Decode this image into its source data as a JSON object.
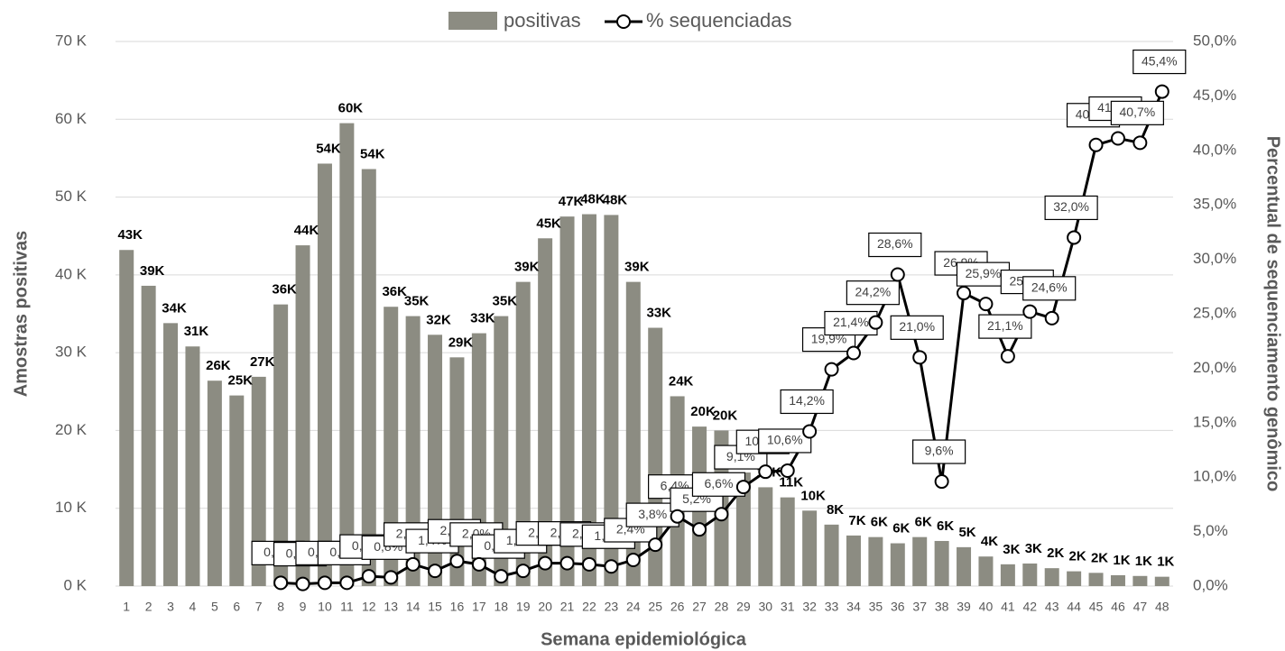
{
  "chart_data": {
    "type": "bar_line",
    "x_label": "Semana epidemiológica",
    "y_label": "Amostras positivas",
    "y2_label": "Percentual de sequenciamento genômico",
    "categories": [
      "1",
      "2",
      "3",
      "4",
      "5",
      "6",
      "7",
      "8",
      "9",
      "10",
      "11",
      "12",
      "13",
      "14",
      "15",
      "16",
      "17",
      "18",
      "19",
      "20",
      "21",
      "22",
      "23",
      "24",
      "25",
      "26",
      "27",
      "28",
      "29",
      "30",
      "31",
      "32",
      "33",
      "34",
      "35",
      "36",
      "37",
      "38",
      "39",
      "40",
      "41",
      "42",
      "43",
      "44",
      "45",
      "46",
      "47",
      "48"
    ],
    "series": [
      {
        "name": "positivas",
        "color": "#8c8c82",
        "values": [
          43.2,
          38.6,
          33.8,
          30.8,
          26.4,
          24.5,
          26.9,
          36.2,
          43.8,
          54.3,
          59.5,
          53.6,
          35.9,
          34.7,
          32.3,
          29.4,
          32.5,
          34.7,
          39.1,
          44.7,
          47.5,
          47.8,
          47.7,
          39.1,
          33.2,
          24.4,
          20.5,
          20.0,
          14.6,
          12.7,
          11.4,
          9.7,
          7.9,
          6.5,
          6.3,
          5.5,
          6.3,
          5.8,
          5.0,
          3.8,
          2.8,
          2.9,
          2.3,
          1.9,
          1.7,
          1.4,
          1.3,
          1.2
        ],
        "value_labels": [
          "43K",
          "39K",
          "34K",
          "31K",
          "26K",
          "25K",
          "27K",
          "36K",
          "44K",
          "54K",
          "60K",
          "54K",
          "36K",
          "35K",
          "32K",
          "29K",
          "33K",
          "35K",
          "39K",
          "45K",
          "47K",
          "48K",
          "48K",
          "39K",
          "33K",
          "24K",
          "20K",
          "20K",
          "15K",
          "13K",
          "11K",
          "10K",
          "8K",
          "7K",
          "6K",
          "6K",
          "6K",
          "6K",
          "5K",
          "4K",
          "3K",
          "3K",
          "2K",
          "2K",
          "2K",
          "1K",
          "1K",
          "1K"
        ]
      },
      {
        "name": "% sequenciadas",
        "color": "#000000",
        "axis": "y2",
        "values": [
          null,
          null,
          null,
          null,
          null,
          null,
          null,
          0.3,
          0.2,
          0.3,
          0.3,
          0.9,
          0.8,
          2.0,
          1.4,
          2.3,
          2.0,
          0.9,
          1.4,
          2.1,
          2.1,
          2.0,
          1.8,
          2.4,
          3.8,
          6.4,
          5.2,
          6.6,
          9.1,
          10.5,
          10.6,
          14.2,
          19.9,
          21.4,
          24.2,
          28.6,
          21.0,
          9.6,
          26.9,
          25.9,
          21.1,
          25.2,
          24.6,
          32.0,
          40.5,
          41.1,
          40.7,
          45.4
        ],
        "value_labels": [
          null,
          null,
          null,
          null,
          null,
          null,
          null,
          "0,3%",
          "0,2%",
          "0,3%",
          "0,3%",
          "0,9%",
          "0,8%",
          "2,0%",
          "1,4%",
          "2,3%",
          "2,0%",
          "0,9%",
          "1,4%",
          "2,1%",
          "2,1%",
          "2,0%",
          "1,8%",
          "2,4%",
          "3,8%",
          "6,4%",
          "5,2%",
          "6,6%",
          "9,1%",
          "10,5%",
          "10,6%",
          "14,2%",
          "19,9%",
          "21,4%",
          "24,2%",
          "28,6%",
          "21,0%",
          "9,6%",
          "26,9%",
          "25,9%",
          "21,1%",
          "25,2%",
          "24,6%",
          "32,0%",
          "40,5%",
          "41,1%",
          "40,7%",
          "45,4%"
        ]
      }
    ],
    "ylim": [
      0,
      70
    ],
    "yticks": [
      {
        "value": 0,
        "label": "0 K"
      },
      {
        "value": 10,
        "label": "10 K"
      },
      {
        "value": 20,
        "label": "20 K"
      },
      {
        "value": 30,
        "label": "30 K"
      },
      {
        "value": 40,
        "label": "40 K"
      },
      {
        "value": 50,
        "label": "50 K"
      },
      {
        "value": 60,
        "label": "60 K"
      },
      {
        "value": 70,
        "label": "70 K"
      }
    ],
    "y2lim": [
      0,
      50
    ],
    "y2ticks": [
      {
        "value": 0,
        "label": "0,0%"
      },
      {
        "value": 5,
        "label": "5,0%"
      },
      {
        "value": 10,
        "label": "10,0%"
      },
      {
        "value": 15,
        "label": "15,0%"
      },
      {
        "value": 20,
        "label": "20,0%"
      },
      {
        "value": 25,
        "label": "25,0%"
      },
      {
        "value": 30,
        "label": "30,0%"
      },
      {
        "value": 35,
        "label": "35,0%"
      },
      {
        "value": 40,
        "label": "40,0%"
      },
      {
        "value": 45,
        "label": "45,0%"
      },
      {
        "value": 50,
        "label": "50,0%"
      }
    ],
    "grid": true,
    "legend": "top"
  }
}
